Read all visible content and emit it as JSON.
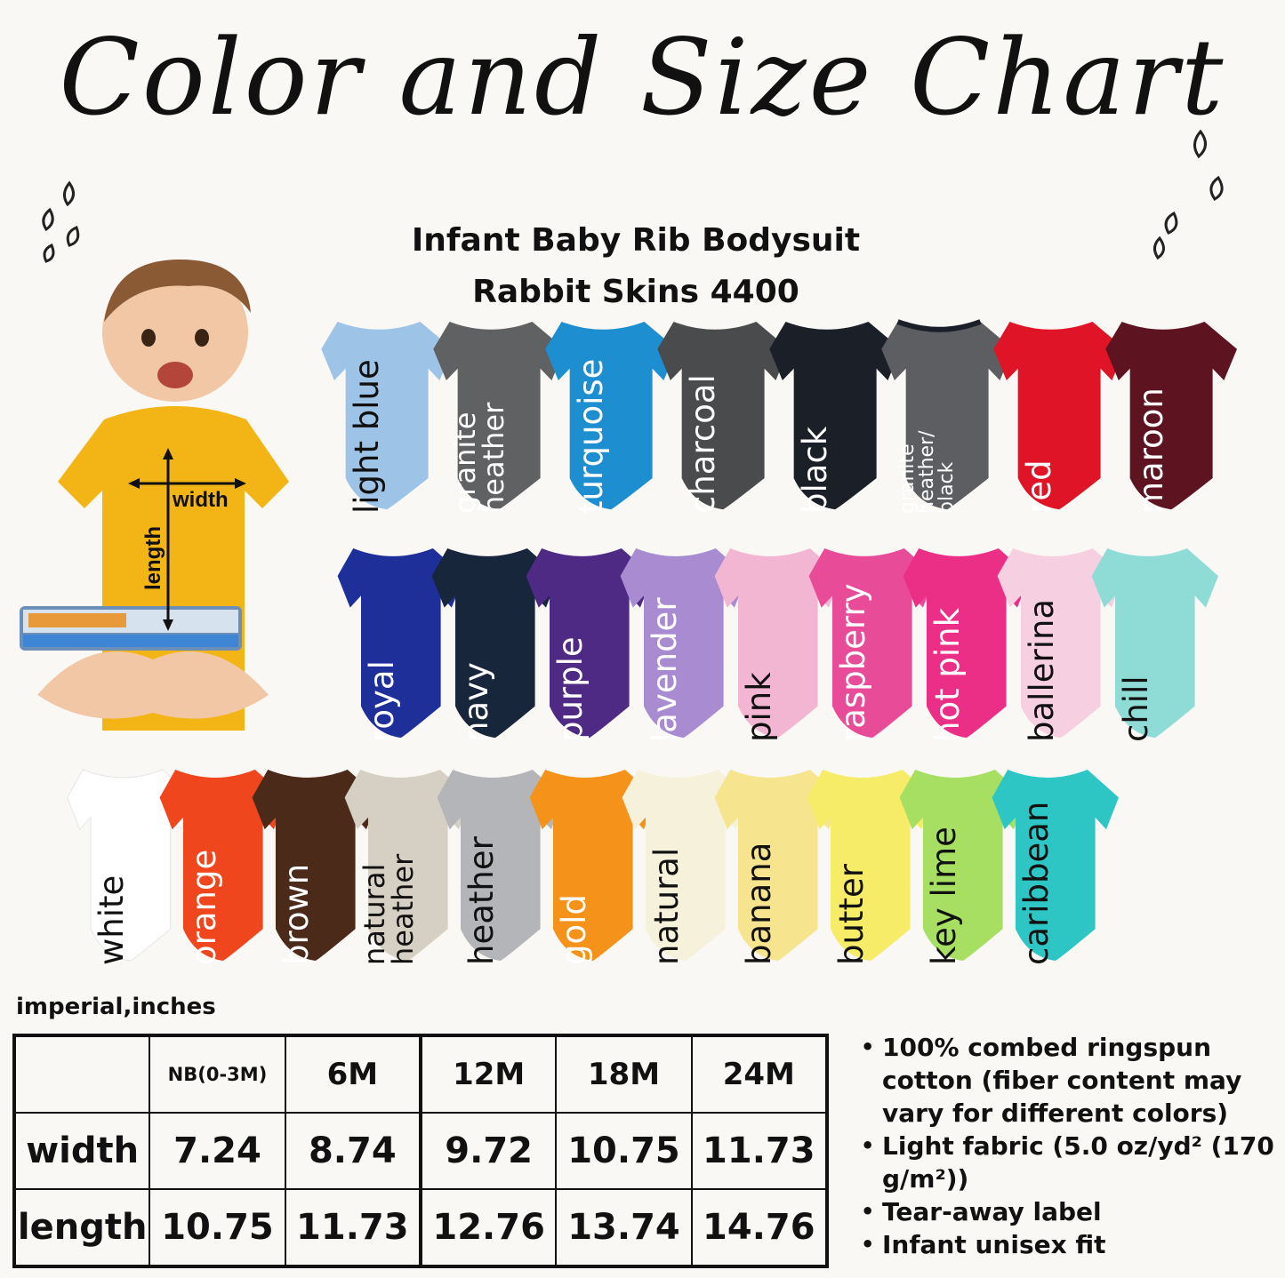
{
  "title": "Color and Size Chart",
  "subtitle_1": "Infant Baby Rib Bodysuit",
  "subtitle_2": "Rabbit Skins 4400",
  "baby_photo": {
    "width_label": "width",
    "length_label": "length"
  },
  "colors": [
    {
      "name": "light blue",
      "hex": "#9dc3e6"
    },
    {
      "name": "granite\nheather",
      "hex": "#5f6163"
    },
    {
      "name": "turquoise",
      "hex": "#1d8fd0"
    },
    {
      "name": "charcoal",
      "hex": "#4a4b4d"
    },
    {
      "name": "black",
      "hex": "#1b1f28"
    },
    {
      "name": "granite\nheather/\nblack",
      "hex": "#5d5e61"
    },
    {
      "name": "red",
      "hex": "#df1527"
    },
    {
      "name": "maroon",
      "hex": "#5e1320"
    },
    {
      "name": "royal",
      "hex": "#1e2f9a"
    },
    {
      "name": "navy",
      "hex": "#17263a"
    },
    {
      "name": "purple",
      "hex": "#4e2a84"
    },
    {
      "name": "lavender",
      "hex": "#a88bd0"
    },
    {
      "name": "pink",
      "hex": "#f3b6d2"
    },
    {
      "name": "raspberry",
      "hex": "#e84c98"
    },
    {
      "name": "hot pink",
      "hex": "#ec2f86"
    },
    {
      "name": "ballerina",
      "hex": "#f6cfe0"
    },
    {
      "name": "chill",
      "hex": "#8fdcd6"
    },
    {
      "name": "white",
      "hex": "#ffffff"
    },
    {
      "name": "orange",
      "hex": "#f0461d"
    },
    {
      "name": "brown",
      "hex": "#4b2a1a"
    },
    {
      "name": "natural\nheather",
      "hex": "#d6cfc3"
    },
    {
      "name": "heather",
      "hex": "#b3b5b8"
    },
    {
      "name": "gold",
      "hex": "#f4921a"
    },
    {
      "name": "natural",
      "hex": "#f6f1db"
    },
    {
      "name": "banana",
      "hex": "#f7e48f"
    },
    {
      "name": "butter",
      "hex": "#f7ec68"
    },
    {
      "name": "key lime",
      "hex": "#a6df62"
    },
    {
      "name": "caribbean",
      "hex": "#2ec6c4"
    }
  ],
  "unit_label": "imperial,inches",
  "size_table": {
    "sizes": [
      "NB(0-3M)",
      "6M",
      "12M",
      "18M",
      "24M"
    ],
    "rows": [
      {
        "label": "width",
        "values": [
          "7.24",
          "8.74",
          "9.72",
          "10.75",
          "11.73"
        ]
      },
      {
        "label": "length",
        "values": [
          "10.75",
          "11.73",
          "12.76",
          "13.74",
          "14.76"
        ]
      }
    ]
  },
  "features": [
    "100% combed ringspun cotton (fiber content may vary for different colors)",
    "Light fabric (5.0 oz/yd² (170 g/m²))",
    "Tear-away label",
    "Infant unisex fit"
  ]
}
